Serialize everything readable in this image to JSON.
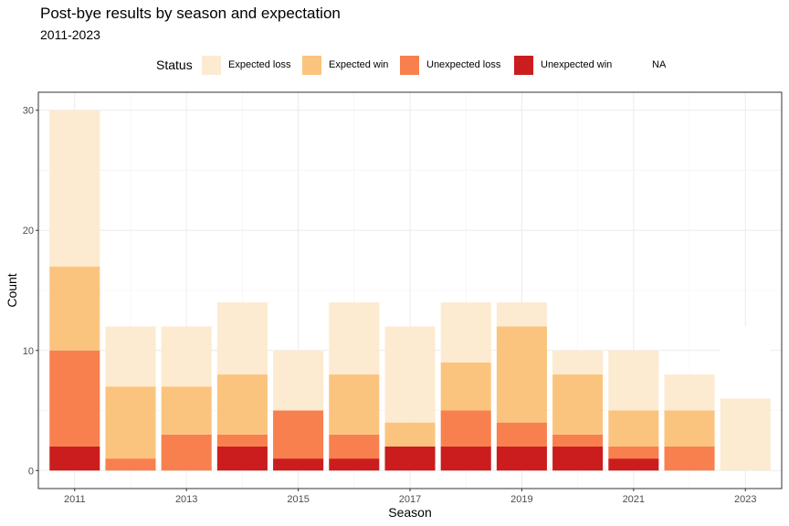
{
  "chart_data": {
    "type": "bar",
    "stacked": true,
    "title": "Post-bye results by season and expectation",
    "subtitle": "2011-2023",
    "xlabel": "Season",
    "ylabel": "Count",
    "legend_title": "Status",
    "legend_position": "top",
    "grid": true,
    "ylim": [
      0,
      30
    ],
    "y_ticks": [
      0,
      10,
      20,
      30
    ],
    "x_ticks": [
      2011,
      2013,
      2015,
      2017,
      2019,
      2021,
      2023
    ],
    "categories": [
      2011,
      2012,
      2013,
      2014,
      2015,
      2016,
      2017,
      2018,
      2019,
      2020,
      2021,
      2022,
      2023
    ],
    "series": [
      {
        "name": "Unexpected win",
        "color": "#cb1d1d",
        "values": [
          2,
          0,
          0,
          2,
          1,
          1,
          2,
          2,
          2,
          2,
          1,
          0,
          0
        ]
      },
      {
        "name": "Unexpected loss",
        "color": "#f8804e",
        "values": [
          8,
          1,
          3,
          1,
          4,
          2,
          0,
          3,
          2,
          1,
          1,
          2,
          0
        ]
      },
      {
        "name": "Expected win",
        "color": "#fbc47e",
        "values": [
          7,
          6,
          4,
          5,
          0,
          5,
          2,
          4,
          8,
          5,
          3,
          3,
          0
        ]
      },
      {
        "name": "Expected loss",
        "color": "#fcebd0",
        "values": [
          13,
          5,
          5,
          6,
          5,
          6,
          8,
          5,
          2,
          2,
          5,
          3,
          6
        ]
      },
      {
        "name": "NA",
        "color": "#ffffff",
        "values": [
          0,
          0,
          0,
          0,
          0,
          0,
          0,
          0,
          0,
          0,
          0,
          0,
          6
        ]
      }
    ],
    "legend_order": [
      "Expected loss",
      "Expected win",
      "Unexpected loss",
      "Unexpected win",
      "NA"
    ]
  }
}
